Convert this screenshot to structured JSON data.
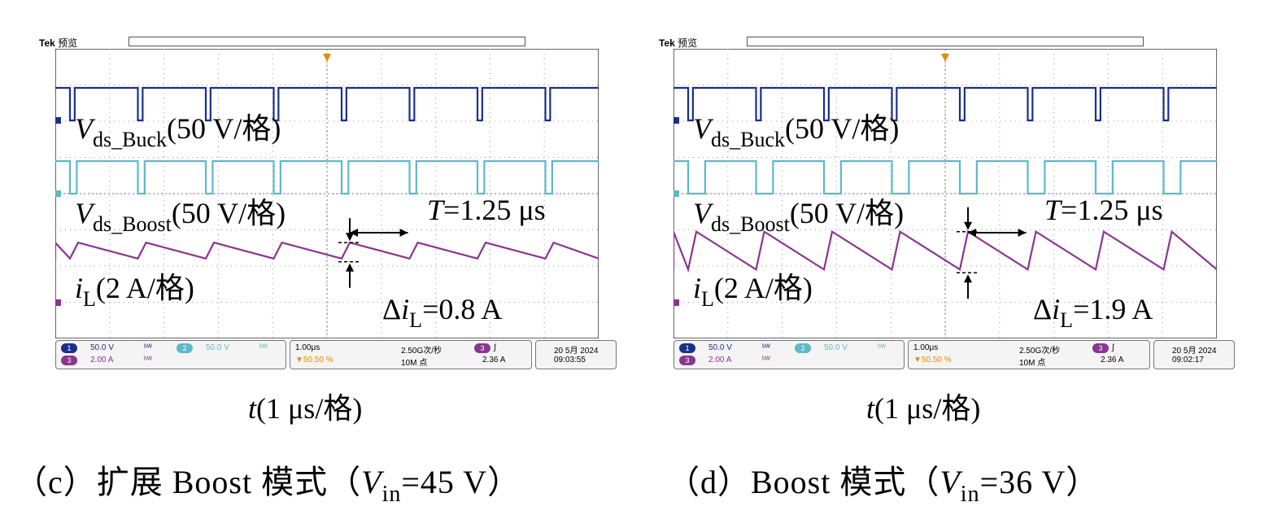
{
  "colors": {
    "ch1": "#1a2f8a",
    "ch2": "#5fb8c8",
    "ch3": "#8a3590",
    "trigger": "#e68a00",
    "grid": "#999999"
  },
  "panels": [
    {
      "id": "c",
      "brand": "Tek",
      "mode": "预览",
      "labels": {
        "vbuck_v": "V",
        "vbuck_sub": "ds_Buck",
        "vbuck_scale": "(50 V/格)",
        "vboost_v": "V",
        "vboost_sub": "ds_Boost",
        "vboost_scale": "(50 V/格)",
        "il_i": "i",
        "il_sub": "L",
        "il_scale": "(2 A/格)",
        "period": "T =1.25 μs",
        "delta_pre": "Δ",
        "delta_i": "i",
        "delta_sub": "L",
        "delta_val": "=0.8 A",
        "xlabel_t": "t",
        "xlabel_rest": "(1 μs/格)"
      },
      "status": {
        "ch1_num": "1",
        "ch1_scale": "50.0 V",
        "ch2_num": "2",
        "ch2_scale": "50.0 V",
        "ch3_num": "3",
        "ch3_scale": "2.00 A",
        "timebase": "1.00μs",
        "sample": "2.50G次/秒",
        "trig_pos": "50.50 %",
        "points": "10M 点",
        "trig_ch": "3",
        "trig_level": "2.36 A",
        "date": "20 5月 2024",
        "time": "09:03:55"
      },
      "caption": {
        "prefix": "（c）扩展 Boost 模式（",
        "v": "V",
        "sub": "in",
        "suffix": "=45 V）"
      },
      "chart_data": {
        "type": "line",
        "x_unit": "μs",
        "x_range": [
          -4,
          4
        ],
        "series": [
          {
            "name": "Vds_Buck",
            "shape": "pulse-low",
            "duty_low": 0.07
          },
          {
            "name": "Vds_Boost",
            "shape": "pulse-low",
            "duty_low": 0.1
          },
          {
            "name": "iL",
            "shape": "sawtooth",
            "ripple_A": 0.8
          }
        ],
        "period_us": 1.25
      }
    },
    {
      "id": "d",
      "brand": "Tek",
      "mode": "预览",
      "labels": {
        "vbuck_v": "V",
        "vbuck_sub": "ds_Buck",
        "vbuck_scale": "(50 V/格)",
        "vboost_v": "V",
        "vboost_sub": "ds_Boost",
        "vboost_scale": "(50 V/格)",
        "il_i": "i",
        "il_sub": "L",
        "il_scale": "(2 A/格)",
        "period": "T =1.25 μs",
        "delta_pre": "Δ",
        "delta_i": "i",
        "delta_sub": "L",
        "delta_val": "=1.9 A",
        "xlabel_t": "t",
        "xlabel_rest": "(1 μs/格)"
      },
      "status": {
        "ch1_num": "1",
        "ch1_scale": "50.0 V",
        "ch2_num": "2",
        "ch2_scale": "50.0 V",
        "ch3_num": "3",
        "ch3_scale": "2.00 A",
        "timebase": "1.00μs",
        "sample": "2.50G次/秒",
        "trig_pos": "50.50 %",
        "points": "10M 点",
        "trig_ch": "3",
        "trig_level": "2.36 A",
        "date": "20 5月 2024",
        "time": "09:02:17"
      },
      "caption": {
        "prefix": "（d）Boost 模式（",
        "v": "V",
        "sub": "in",
        "suffix": "=36 V）"
      },
      "chart_data": {
        "type": "line",
        "x_unit": "μs",
        "x_range": [
          -4,
          4
        ],
        "series": [
          {
            "name": "Vds_Buck",
            "shape": "pulse-low",
            "duty_low": 0.07
          },
          {
            "name": "Vds_Boost",
            "shape": "pulse-low",
            "duty_low": 0.25
          },
          {
            "name": "iL",
            "shape": "sawtooth",
            "ripple_A": 1.9
          }
        ],
        "period_us": 1.25
      }
    }
  ]
}
